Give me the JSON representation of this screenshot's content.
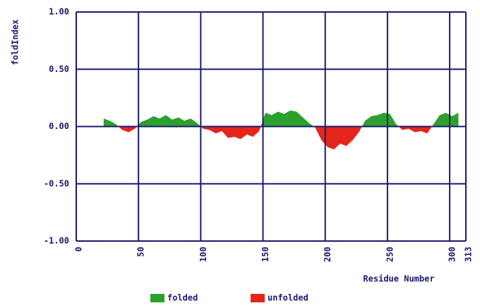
{
  "chart_data": {
    "type": "area",
    "title": null,
    "y_label": "foldIndex",
    "x_label": "Residue Number",
    "xlim": [
      0,
      313
    ],
    "xticks": [
      0,
      50,
      100,
      150,
      200,
      250,
      300,
      313
    ],
    "ylim": [
      -1,
      1
    ],
    "yticks": [
      {
        "value": -1,
        "label": "-1.00"
      },
      {
        "value": -0.5,
        "label": "-0.50"
      },
      {
        "value": 0,
        "label": "0.00"
      },
      {
        "value": 0.5,
        "label": "0.50"
      },
      {
        "value": 1,
        "label": "1.00"
      }
    ],
    "grid": true,
    "legend": [
      {
        "name": "folded",
        "color": "#2ca02c"
      },
      {
        "name": "unfolded",
        "color": "#e3261c"
      }
    ],
    "x": [
      22,
      27,
      32,
      37,
      42,
      47,
      52,
      57,
      62,
      67,
      72,
      77,
      82,
      87,
      92,
      97,
      102,
      107,
      112,
      117,
      122,
      127,
      132,
      137,
      142,
      147,
      152,
      157,
      162,
      167,
      172,
      177,
      182,
      187,
      192,
      197,
      202,
      207,
      212,
      217,
      222,
      227,
      232,
      237,
      242,
      247,
      252,
      257,
      262,
      267,
      272,
      277,
      282,
      287,
      292,
      297,
      302,
      307
    ],
    "values": [
      0.07,
      0.05,
      0.02,
      -0.03,
      -0.05,
      -0.02,
      0.04,
      0.06,
      0.09,
      0.07,
      0.1,
      0.06,
      0.08,
      0.05,
      0.07,
      0.03,
      -0.02,
      -0.03,
      -0.06,
      -0.04,
      -0.1,
      -0.09,
      -0.11,
      -0.07,
      -0.09,
      -0.04,
      0.12,
      0.1,
      0.13,
      0.11,
      0.14,
      0.13,
      0.08,
      0.03,
      -0.01,
      -0.12,
      -0.18,
      -0.2,
      -0.15,
      -0.17,
      -0.12,
      -0.05,
      0.05,
      0.09,
      0.1,
      0.12,
      0.11,
      0.02,
      -0.03,
      -0.02,
      -0.05,
      -0.04,
      -0.06,
      0.02,
      0.1,
      0.12,
      0.09,
      0.12
    ]
  }
}
